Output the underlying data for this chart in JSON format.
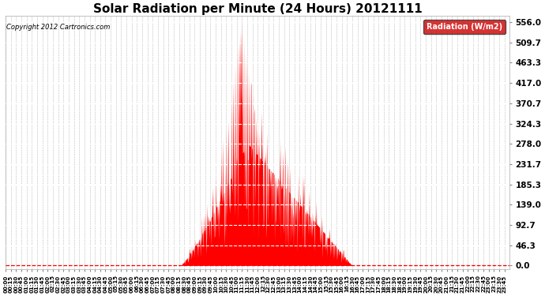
{
  "title": "Solar Radiation per Minute (24 Hours) 20121111",
  "copyright": "Copyright 2012 Cartronics.com",
  "legend_label": "Radiation (W/m2)",
  "yticks": [
    0.0,
    46.3,
    92.7,
    139.0,
    185.3,
    231.7,
    278.0,
    324.3,
    370.7,
    417.0,
    463.3,
    509.7,
    556.0
  ],
  "ymax": 570,
  "ymin": -8,
  "bar_color": "#ff0000",
  "dashed_line_color": "#ffffff",
  "baseline_color": "#ff0000",
  "background_color": "#ffffff",
  "plot_bg_color": "#ffffff",
  "grid_color": "#999999",
  "title_fontsize": 11,
  "legend_bg": "#cc0000",
  "legend_text_color": "#ffffff",
  "sunrise_min": 500,
  "sunset_min": 990,
  "peak_min": 690,
  "peak_val": 556.0
}
